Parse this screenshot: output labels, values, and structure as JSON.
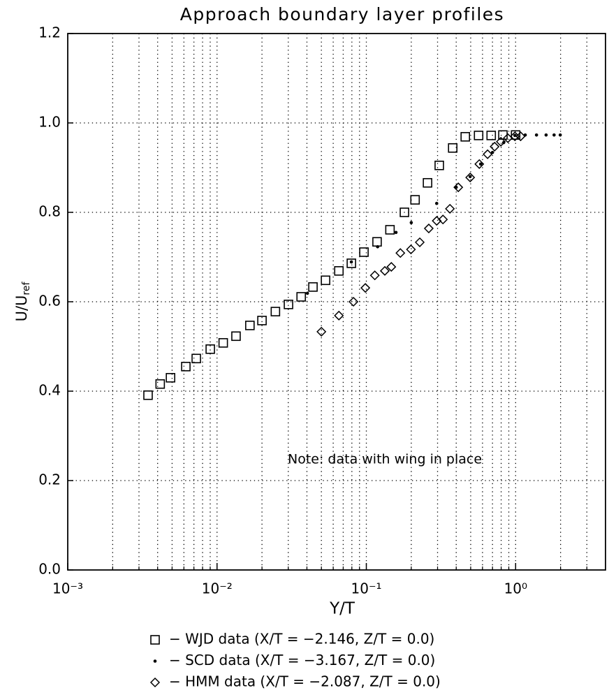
{
  "chart_data": {
    "type": "scatter",
    "title": "Approach boundary layer profiles",
    "xlabel": "Y/T",
    "ylabel": "U/U",
    "ylabel_subscript": "ref",
    "annotation": "Note:  data with wing in place",
    "xscale": "log",
    "grid": true,
    "xlim": [
      0.001,
      4
    ],
    "ylim": [
      0,
      1.2
    ],
    "xticks": [
      {
        "value": 0.001,
        "label": "10⁻³"
      },
      {
        "value": 0.01,
        "label": "10⁻²"
      },
      {
        "value": 0.1,
        "label": "10⁻¹"
      },
      {
        "value": 1,
        "label": "10⁰"
      }
    ],
    "xminorticks": [
      0.002,
      0.003,
      0.004,
      0.005,
      0.006,
      0.007,
      0.008,
      0.009,
      0.02,
      0.03,
      0.04,
      0.05,
      0.06,
      0.07,
      0.08,
      0.09,
      0.2,
      0.3,
      0.4,
      0.5,
      0.6,
      0.7,
      0.8,
      0.9,
      2,
      3,
      4
    ],
    "yticks": [
      {
        "value": 0,
        "label": "0.0"
      },
      0.2,
      0.4,
      0.6,
      0.8,
      {
        "value": 1,
        "label": "1.0"
      },
      1.2
    ],
    "series": [
      {
        "name": "− WJD data (X/T = −2.146, Z/T = 0.0)",
        "color": "#000000",
        "marker": "square",
        "x": [
          0.00345,
          0.00416,
          0.00488,
          0.00618,
          0.00726,
          0.00901,
          0.011,
          0.0134,
          0.0166,
          0.02,
          0.0246,
          0.0301,
          0.0366,
          0.0439,
          0.0533,
          0.0655,
          0.0794,
          0.0964,
          0.118,
          0.144,
          0.18,
          0.212,
          0.257,
          0.308,
          0.379,
          0.46,
          0.565,
          0.686,
          0.822,
          1.0
        ],
        "values": [
          0.391,
          0.416,
          0.43,
          0.455,
          0.473,
          0.494,
          0.508,
          0.523,
          0.547,
          0.558,
          0.578,
          0.594,
          0.611,
          0.633,
          0.648,
          0.669,
          0.686,
          0.711,
          0.734,
          0.761,
          0.8,
          0.828,
          0.866,
          0.905,
          0.944,
          0.969,
          0.972,
          0.972,
          0.973,
          0.973
        ]
      },
      {
        "name": "− SCD data (X/T = −3.167, Z/T = 0.0)",
        "color": "#000000",
        "marker": "dot",
        "x": [
          0.0403,
          0.0794,
          0.119,
          0.158,
          0.2,
          0.296,
          0.4,
          0.496,
          0.583,
          0.7,
          0.832,
          0.989,
          1.16,
          1.38,
          1.6,
          1.81,
          1.99
        ],
        "values": [
          0.619,
          0.689,
          0.723,
          0.755,
          0.777,
          0.82,
          0.856,
          0.88,
          0.908,
          0.934,
          0.956,
          0.972,
          0.973,
          0.973,
          0.973,
          0.973,
          0.973
        ]
      },
      {
        "name": "− HMM data (X/T = −2.087, Z/T = 0.0)",
        "color": "#000000",
        "marker": "diamond",
        "x": [
          0.05,
          0.0655,
          0.082,
          0.0985,
          0.114,
          0.133,
          0.147,
          0.169,
          0.199,
          0.228,
          0.262,
          0.296,
          0.326,
          0.363,
          0.413,
          0.496,
          0.571,
          0.649,
          0.723,
          0.796,
          0.887,
          0.989,
          1.08
        ],
        "values": [
          0.533,
          0.569,
          0.6,
          0.631,
          0.659,
          0.669,
          0.678,
          0.709,
          0.717,
          0.733,
          0.764,
          0.781,
          0.784,
          0.808,
          0.856,
          0.878,
          0.908,
          0.93,
          0.947,
          0.958,
          0.966,
          0.97,
          0.97
        ]
      }
    ]
  }
}
